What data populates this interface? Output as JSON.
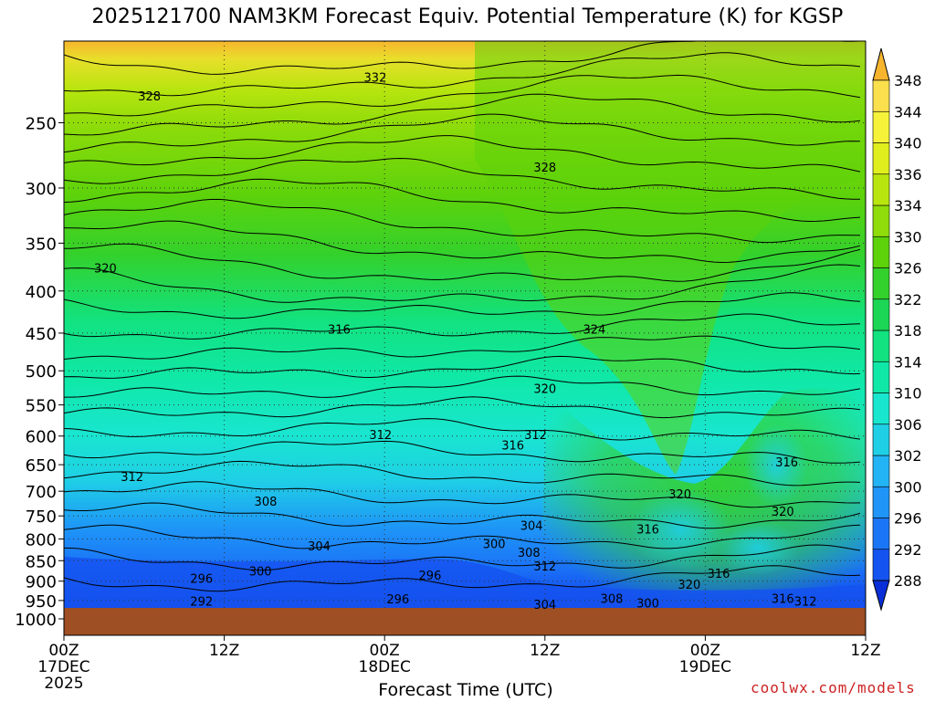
{
  "title": "2025121700 NAM3KM Forecast Equiv. Potential Temperature (K) for KGSP",
  "xlabel": "Forecast Time (UTC)",
  "credit": "coolwx.com/models",
  "chart_data": {
    "type": "heatmap",
    "title": "2025121700 NAM3KM Forecast Equiv. Potential Temperature (K) for KGSP",
    "xlabel": "Forecast Time (UTC)",
    "ylabel": "",
    "x_ticks": [
      {
        "hour": 0,
        "label": [
          "00Z",
          "17DEC",
          "2025"
        ]
      },
      {
        "hour": 12,
        "label": [
          "12Z"
        ]
      },
      {
        "hour": 24,
        "label": [
          "00Z",
          "18DEC"
        ]
      },
      {
        "hour": 36,
        "label": [
          "12Z"
        ]
      },
      {
        "hour": 48,
        "label": [
          "00Z",
          "19DEC"
        ]
      },
      {
        "hour": 60,
        "label": [
          "12Z"
        ]
      }
    ],
    "xlim_hours": [
      0,
      60
    ],
    "y_pressure_ticks": [
      250,
      300,
      350,
      400,
      450,
      500,
      550,
      600,
      650,
      700,
      750,
      800,
      850,
      900,
      950,
      1000
    ],
    "ylim_hPa": [
      200,
      1000
    ],
    "y_scale": "log-pressure (inverted)",
    "colorbar_levels": [
      288,
      292,
      296,
      300,
      302,
      306,
      310,
      314,
      318,
      322,
      326,
      330,
      334,
      336,
      340,
      344,
      348
    ],
    "colorbar_colors": [
      "#0a2fd8",
      "#1553f0",
      "#1b76f7",
      "#1e95f7",
      "#22b4f4",
      "#1fcfe6",
      "#19e6cf",
      "#10e8a8",
      "#12e27f",
      "#1bd654",
      "#33d12c",
      "#5dd20b",
      "#8fdc0a",
      "#b9e50f",
      "#e0ee1d",
      "#f6f23a",
      "#fbe04d",
      "#f7b52d"
    ],
    "contour_labels": [
      {
        "text": "328",
        "hour": 6.4,
        "p": 232
      },
      {
        "text": "332",
        "hour": 23.3,
        "p": 220
      },
      {
        "text": "328",
        "hour": 36.0,
        "p": 283
      },
      {
        "text": "320",
        "hour": 3.1,
        "p": 375
      },
      {
        "text": "316",
        "hour": 20.6,
        "p": 445
      },
      {
        "text": "324",
        "hour": 39.7,
        "p": 445
      },
      {
        "text": "320",
        "hour": 36.0,
        "p": 525
      },
      {
        "text": "312",
        "hour": 23.7,
        "p": 597
      },
      {
        "text": "312",
        "hour": 35.3,
        "p": 597
      },
      {
        "text": "316",
        "hour": 33.6,
        "p": 615
      },
      {
        "text": "312",
        "hour": 5.1,
        "p": 672
      },
      {
        "text": "316",
        "hour": 54.1,
        "p": 645
      },
      {
        "text": "308",
        "hour": 15.1,
        "p": 720
      },
      {
        "text": "320",
        "hour": 46.1,
        "p": 705
      },
      {
        "text": "320",
        "hour": 53.8,
        "p": 740
      },
      {
        "text": "304",
        "hour": 35.0,
        "p": 770
      },
      {
        "text": "316",
        "hour": 43.7,
        "p": 778
      },
      {
        "text": "304",
        "hour": 19.1,
        "p": 815
      },
      {
        "text": "300",
        "hour": 32.2,
        "p": 810
      },
      {
        "text": "308",
        "hour": 34.8,
        "p": 830
      },
      {
        "text": "312",
        "hour": 36.0,
        "p": 862
      },
      {
        "text": "300",
        "hour": 14.7,
        "p": 875
      },
      {
        "text": "296",
        "hour": 10.3,
        "p": 893
      },
      {
        "text": "296",
        "hour": 27.4,
        "p": 885
      },
      {
        "text": "316",
        "hour": 49.0,
        "p": 880
      },
      {
        "text": "320",
        "hour": 46.8,
        "p": 908
      },
      {
        "text": "296",
        "hour": 25.0,
        "p": 945
      },
      {
        "text": "308",
        "hour": 41.0,
        "p": 944
      },
      {
        "text": "316",
        "hour": 53.8,
        "p": 944
      },
      {
        "text": "312",
        "hour": 55.5,
        "p": 952
      },
      {
        "text": "292",
        "hour": 10.3,
        "p": 952
      },
      {
        "text": "304",
        "hour": 36.0,
        "p": 960
      },
      {
        "text": "300",
        "hour": 43.7,
        "p": 956
      }
    ],
    "legend_placement": "right colorbar",
    "grid": "dotted"
  }
}
